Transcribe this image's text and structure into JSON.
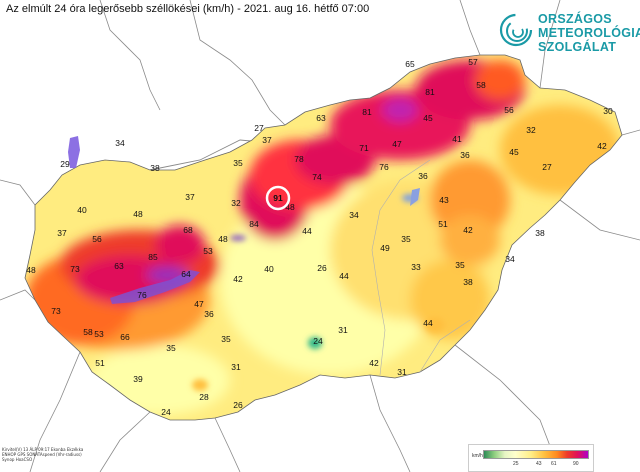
{
  "title": "Az elmúlt 24 óra legerősebb széllökései (km/h) - 2021. aug 16. hétfő 07:00",
  "logo": {
    "icon": "omsz-swirl-logo",
    "lines": [
      "ORSZÁGOS",
      "METEOROLÓGIAI",
      "SZOLGÁLAT"
    ],
    "color": "#1a9aa6"
  },
  "credits": [
    "Kirvitel(V) 13 ÁLP 09:17 Ekonba Ekzékka",
    "ENHOP GPS SONATAspeed (Vhr-radiuss)",
    "Synop HoaCSO"
  ],
  "legend": {
    "unit": "km/h",
    "ticks": [
      "25",
      "43",
      "61",
      "90"
    ],
    "colors": [
      "#2e8b57",
      "#8fcf7f",
      "#ffffcc",
      "#ffee88",
      "#ffc040",
      "#ff8a20",
      "#ee3a2a",
      "#e0105a",
      "#b000c8"
    ]
  },
  "highlight": {
    "value": "91",
    "marker": "white-circle"
  },
  "stations": [
    {
      "id": "s01",
      "value": "65"
    },
    {
      "id": "s02",
      "value": "57"
    },
    {
      "id": "s03",
      "value": "81"
    },
    {
      "id": "s04",
      "value": "58"
    },
    {
      "id": "s05",
      "value": "63"
    },
    {
      "id": "s06",
      "value": "81"
    },
    {
      "id": "s07",
      "value": "56"
    },
    {
      "id": "s08",
      "value": "30"
    },
    {
      "id": "s09",
      "value": "27"
    },
    {
      "id": "s10",
      "value": "45"
    },
    {
      "id": "s11",
      "value": "37"
    },
    {
      "id": "s12",
      "value": "41"
    },
    {
      "id": "s13",
      "value": "47"
    },
    {
      "id": "s14",
      "value": "32"
    },
    {
      "id": "s15",
      "value": "34"
    },
    {
      "id": "s16",
      "value": "71"
    },
    {
      "id": "s17",
      "value": "36"
    },
    {
      "id": "s18",
      "value": "45"
    },
    {
      "id": "s19",
      "value": "35"
    },
    {
      "id": "s20",
      "value": "78"
    },
    {
      "id": "s21",
      "value": "76"
    },
    {
      "id": "s22",
      "value": "27"
    },
    {
      "id": "s23",
      "value": "29"
    },
    {
      "id": "s24",
      "value": "38"
    },
    {
      "id": "s25",
      "value": "74"
    },
    {
      "id": "s26",
      "value": "36"
    },
    {
      "id": "s27",
      "value": "42"
    },
    {
      "id": "s28",
      "value": "37"
    },
    {
      "id": "s29",
      "value": "32"
    },
    {
      "id": "s30",
      "value": "48"
    },
    {
      "id": "s31",
      "value": "43"
    },
    {
      "id": "s32",
      "value": "40"
    },
    {
      "id": "s33",
      "value": "48"
    },
    {
      "id": "s34",
      "value": "34"
    },
    {
      "id": "s35",
      "value": "84"
    },
    {
      "id": "s36",
      "value": "51"
    },
    {
      "id": "s37",
      "value": "42"
    },
    {
      "id": "s38",
      "value": "37"
    },
    {
      "id": "s39",
      "value": "56"
    },
    {
      "id": "s40",
      "value": "68"
    },
    {
      "id": "s41",
      "value": "44"
    },
    {
      "id": "s42",
      "value": "48"
    },
    {
      "id": "s43",
      "value": "35"
    },
    {
      "id": "s44",
      "value": "53"
    },
    {
      "id": "s45",
      "value": "49"
    },
    {
      "id": "s46",
      "value": "38"
    },
    {
      "id": "s47",
      "value": "34"
    },
    {
      "id": "s48",
      "value": "85"
    },
    {
      "id": "s49",
      "value": "63"
    },
    {
      "id": "s50",
      "value": "73"
    },
    {
      "id": "s51",
      "value": "48"
    },
    {
      "id": "s52",
      "value": "64"
    },
    {
      "id": "s53",
      "value": "40"
    },
    {
      "id": "s54",
      "value": "26"
    },
    {
      "id": "s55",
      "value": "44"
    },
    {
      "id": "s56",
      "value": "33"
    },
    {
      "id": "s57",
      "value": "35"
    },
    {
      "id": "s58",
      "value": "76"
    },
    {
      "id": "s59",
      "value": "42"
    },
    {
      "id": "s60",
      "value": "38"
    },
    {
      "id": "s61",
      "value": "73"
    },
    {
      "id": "s62",
      "value": "47"
    },
    {
      "id": "s63",
      "value": "36"
    },
    {
      "id": "s64",
      "value": "53"
    },
    {
      "id": "s65",
      "value": "58"
    },
    {
      "id": "s66",
      "value": "66"
    },
    {
      "id": "s67",
      "value": "31"
    },
    {
      "id": "s68",
      "value": "44"
    },
    {
      "id": "s69",
      "value": "35"
    },
    {
      "id": "s70",
      "value": "24"
    },
    {
      "id": "s71",
      "value": "35"
    },
    {
      "id": "s72",
      "value": "51"
    },
    {
      "id": "s73",
      "value": "31"
    },
    {
      "id": "s74",
      "value": "42"
    },
    {
      "id": "s75",
      "value": "31"
    },
    {
      "id": "s76",
      "value": "39"
    },
    {
      "id": "s77",
      "value": "28"
    },
    {
      "id": "s78",
      "value": "26"
    },
    {
      "id": "s79",
      "value": "24"
    }
  ]
}
